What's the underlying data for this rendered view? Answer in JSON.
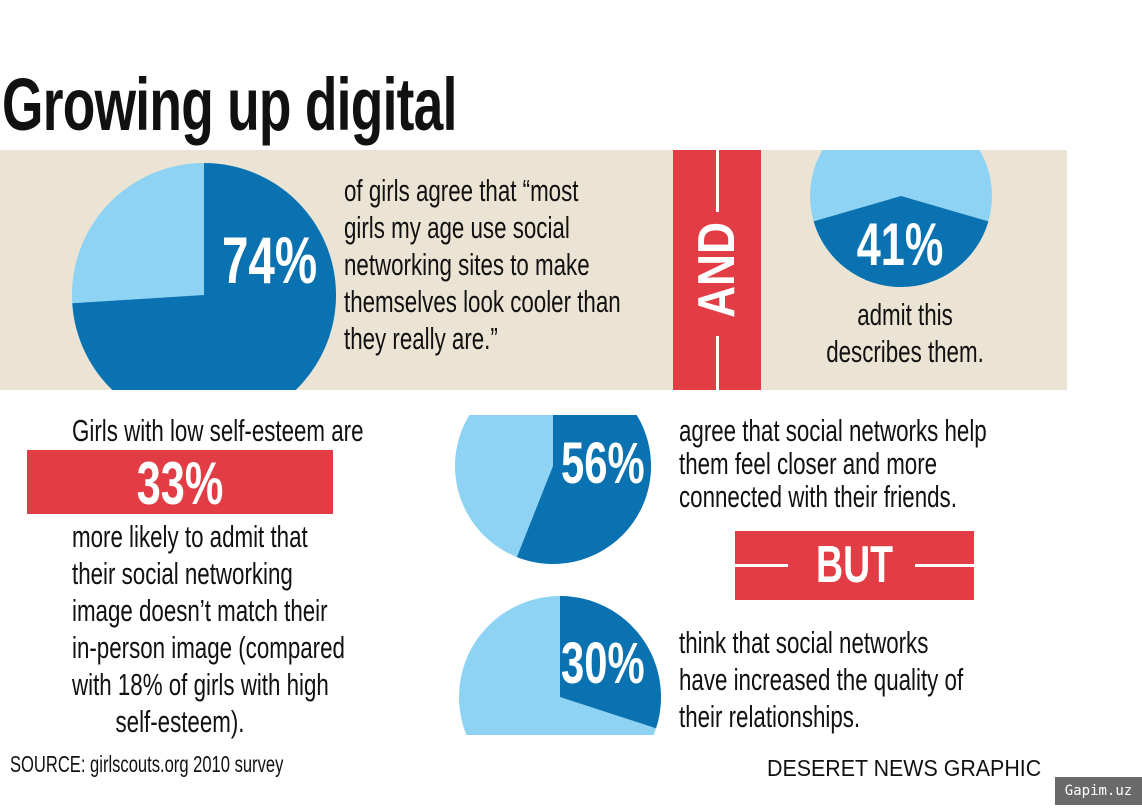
{
  "title": "Growing up digital",
  "colors": {
    "dark_blue": "#0a72b0",
    "light_blue": "#8fd3f4",
    "red": "#e23d45",
    "band": "#ebe4d4"
  },
  "chart_data": [
    {
      "type": "pie",
      "value": 74,
      "label": "74%",
      "text_lines": [
        "of girls agree that “most",
        "girls my age use social",
        "networking sites to make",
        "themselves look cooler than",
        "they really are.”"
      ]
    },
    {
      "type": "pie",
      "value": 41,
      "label": "41%",
      "text_lines": [
        "admit this",
        "describes them."
      ]
    },
    {
      "type": "pie",
      "value": 56,
      "label": "56%",
      "text_lines": [
        "agree that social networks help",
        "them feel closer and more",
        "connected with their friends."
      ]
    },
    {
      "type": "pie",
      "value": 30,
      "label": "30%",
      "text_lines": [
        "think that social networks",
        "have increased the quality of",
        "their relationships."
      ]
    }
  ],
  "connectors": {
    "and": "AND",
    "but": "BUT"
  },
  "self_esteem": {
    "intro": "Girls with low self-esteem are",
    "value": "33%",
    "lines": [
      "more likely to admit that",
      "their social networking",
      "image doesn’t match their",
      "in-person image (compared",
      "with 18% of girls with high",
      "self-esteem)."
    ]
  },
  "source": "SOURCE: girlscouts.org 2010 survey",
  "credit": "DESERET NEWS GRAPHIC",
  "watermark": "Gapim.uz"
}
